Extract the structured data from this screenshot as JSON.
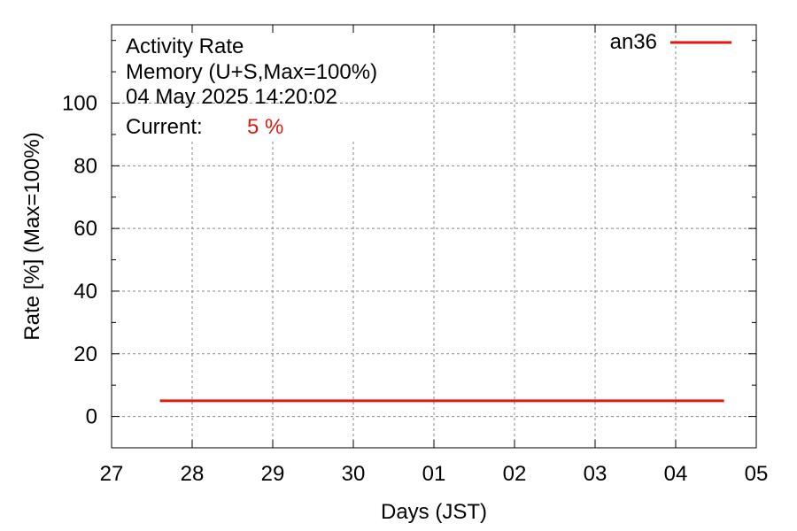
{
  "chart_data": {
    "type": "line",
    "title_lines": [
      "Activity Rate",
      "Memory (U+S,Max=100%)",
      "04 May 2025 14:20:02"
    ],
    "current_label": "Current:",
    "current_value": "5 %",
    "xlabel": "Days (JST)",
    "ylabel": "Rate [%]  (Max=100%)",
    "x_ticks": [
      "27",
      "28",
      "29",
      "30",
      "01",
      "02",
      "03",
      "04",
      "05"
    ],
    "x_range_days": [
      0,
      8
    ],
    "ylim": [
      -10,
      125
    ],
    "y_ticks": [
      0,
      20,
      40,
      60,
      80,
      100
    ],
    "y_minor_step": 10,
    "grid": true,
    "legend_position": "top-right",
    "series": [
      {
        "name": "an36",
        "color": "#e0190f",
        "x_days": [
          0.6,
          7.6
        ],
        "values": [
          5,
          5
        ]
      }
    ]
  }
}
